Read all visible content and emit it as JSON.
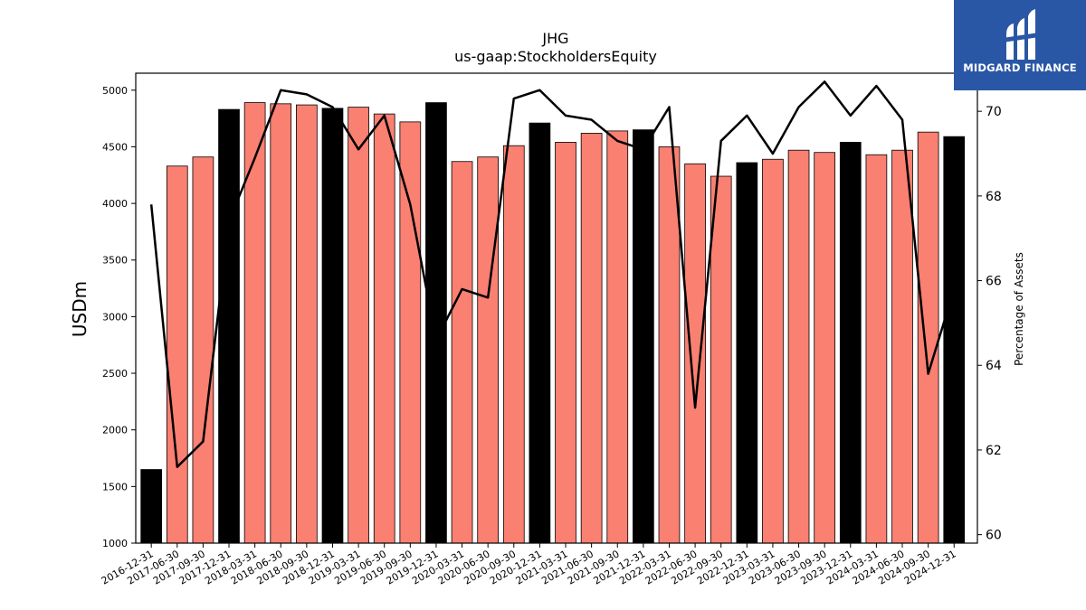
{
  "chart_data": {
    "type": "bar",
    "title": "JHG",
    "subtitle": "us-gaap:StockholdersEquity",
    "ylabel": "USDm",
    "y2label": "Percentage of Assets",
    "ylim": [
      1000,
      5150
    ],
    "y2lim": [
      59.8,
      70.9
    ],
    "yticks": [
      1000,
      1500,
      2000,
      2500,
      3000,
      3500,
      4000,
      4500,
      5000
    ],
    "y2ticks": [
      60,
      62,
      64,
      66,
      68,
      70
    ],
    "grid": false,
    "colors": {
      "bar_highlight": "#000000",
      "bar_normal": "#fa8072",
      "line": "#000000"
    },
    "categories": [
      "2016-12-31",
      "2017-06-30",
      "2017-09-30",
      "2017-12-31",
      "2018-03-31",
      "2018-06-30",
      "2018-09-30",
      "2018-12-31",
      "2019-03-31",
      "2019-06-30",
      "2019-09-30",
      "2019-12-31",
      "2020-03-31",
      "2020-06-30",
      "2020-09-30",
      "2020-12-31",
      "2021-03-31",
      "2021-06-30",
      "2021-09-30",
      "2021-12-31",
      "2022-03-31",
      "2022-06-30",
      "2022-09-30",
      "2022-12-31",
      "2023-03-31",
      "2023-06-30",
      "2023-09-30",
      "2023-12-31",
      "2024-03-31",
      "2024-06-30",
      "2024-09-30",
      "2024-12-31"
    ],
    "highlight": [
      true,
      false,
      false,
      true,
      false,
      false,
      false,
      true,
      false,
      false,
      false,
      true,
      false,
      false,
      false,
      true,
      false,
      false,
      false,
      true,
      false,
      false,
      false,
      true,
      false,
      false,
      false,
      true,
      false,
      false,
      false,
      true
    ],
    "series": [
      {
        "values": [
          1650,
          4330,
          4410,
          4830,
          4890,
          4880,
          4870,
          4840,
          4850,
          4790,
          4720,
          4890,
          4370,
          4410,
          4510,
          4710,
          4540,
          4620,
          4640,
          4650,
          4500,
          4350,
          4240,
          4360,
          4390,
          4470,
          4450,
          4540,
          4430,
          4470,
          4630,
          4590
        ]
      },
      {
        "axis": "right",
        "type": "line",
        "values": [
          67.8,
          61.6,
          62.2,
          67.4,
          68.9,
          70.5,
          70.4,
          70.1,
          69.1,
          69.9,
          67.8,
          64.6,
          65.8,
          65.6,
          70.3,
          70.5,
          69.9,
          69.8,
          69.3,
          69.1,
          70.1,
          63.0,
          69.3,
          69.9,
          69.0,
          70.1,
          70.7,
          69.9,
          70.6,
          69.8,
          63.8,
          65.8
        ]
      }
    ]
  },
  "logo": {
    "text": "MIDGARD FINANCE"
  }
}
